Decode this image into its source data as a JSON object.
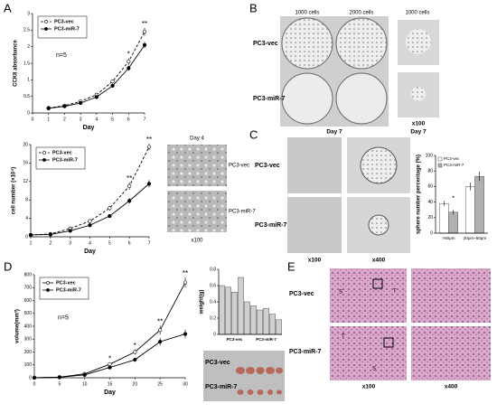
{
  "panels": {
    "A": {
      "label": "A",
      "image_title": "Day 4",
      "rows": [
        "PC3-vec",
        "PC3-miR-7"
      ],
      "magnification": "x100"
    },
    "B": {
      "label": "B",
      "columns": [
        "1000 cells",
        "2000 cells",
        "1000 cells"
      ],
      "rows": [
        "PC3-vec",
        "PC3-miR-7"
      ],
      "captions": [
        "Day 7",
        "x100",
        "Day 7"
      ]
    },
    "C": {
      "label": "C",
      "rows": [
        "PC3-vec",
        "PC3-miR-7"
      ],
      "captions": [
        "x100",
        "x400"
      ]
    },
    "D": {
      "label": "D",
      "rows": [
        "PC3-vec",
        "PC3-miR-7"
      ]
    },
    "E": {
      "label": "E",
      "rows": [
        "PC3-vec",
        "PC3-miR-7"
      ],
      "captions": [
        "x100",
        "x400"
      ],
      "tissue_marks": [
        "S",
        "T",
        "T",
        "S"
      ]
    }
  },
  "chart_data": [
    {
      "type": "line",
      "xlabel": "Day",
      "ylabel": "CCK8 absorbance",
      "x": [
        1,
        2,
        3,
        4,
        5,
        6,
        7
      ],
      "xlim": [
        0,
        7
      ],
      "xticks": [
        0,
        1,
        2,
        3,
        4,
        5,
        6,
        7
      ],
      "ylim": [
        0,
        3
      ],
      "yticks": [
        0,
        0.5,
        1,
        1.5,
        2,
        2.5,
        3
      ],
      "series": [
        {
          "name": "PC3-vec",
          "color": "#000000",
          "style": "dashed",
          "marker": "open",
          "values": [
            0.15,
            0.22,
            0.35,
            0.55,
            0.95,
            1.55,
            2.45
          ],
          "errors": [
            0.02,
            0.02,
            0.03,
            0.04,
            0.06,
            0.1,
            0.12
          ]
        },
        {
          "name": "PC3-miR-7",
          "color": "#000000",
          "style": "solid",
          "marker": "filled",
          "values": [
            0.14,
            0.2,
            0.3,
            0.48,
            0.82,
            1.35,
            2.05
          ],
          "errors": [
            0.02,
            0.02,
            0.03,
            0.04,
            0.05,
            0.08,
            0.1
          ]
        }
      ],
      "legend": "upper left",
      "note": "n=5",
      "annotations": [
        {
          "x": 6,
          "text": "*"
        },
        {
          "x": 7,
          "text": "**"
        }
      ]
    },
    {
      "type": "line",
      "xlabel": "Day",
      "ylabel": "cell number (×10⁴)",
      "x": [
        1,
        2,
        3,
        4,
        5,
        6,
        7
      ],
      "xlim": [
        1,
        7
      ],
      "xticks": [
        1,
        2,
        3,
        4,
        5,
        6,
        7
      ],
      "ylim": [
        0,
        20
      ],
      "yticks": [
        0,
        4,
        8,
        12,
        16,
        20
      ],
      "series": [
        {
          "name": "PC3-vec",
          "color": "#000000",
          "style": "dashed",
          "marker": "open",
          "values": [
            0.4,
            0.6,
            1.8,
            3.4,
            6.2,
            11,
            19.5
          ],
          "errors": [
            0.1,
            0.1,
            0.2,
            0.3,
            0.5,
            0.8,
            0.7
          ]
        },
        {
          "name": "PC3-miR-7",
          "color": "#000000",
          "style": "solid",
          "marker": "filled",
          "values": [
            0.4,
            0.5,
            1.3,
            2.5,
            4.5,
            7.8,
            11.5
          ],
          "errors": [
            0.1,
            0.1,
            0.2,
            0.3,
            0.4,
            0.6,
            0.8
          ]
        }
      ],
      "legend": "upper left",
      "annotations": [
        {
          "x": 6,
          "text": "**"
        },
        {
          "x": 7,
          "text": "**"
        }
      ]
    },
    {
      "type": "bar",
      "ylabel": "sphere number percentage (%)",
      "categories": [
        ">50μm",
        "20μm~50μm"
      ],
      "ylim": [
        0,
        100
      ],
      "yticks": [
        0,
        20,
        40,
        60,
        80,
        100
      ],
      "series": [
        {
          "name": "PC3-vec",
          "color": "#ffffff",
          "values": [
            38,
            60
          ],
          "errors": [
            3,
            5
          ]
        },
        {
          "name": "PC3-miR-7",
          "color": "#b0b0b0",
          "values": [
            27,
            73
          ],
          "errors": [
            3,
            6
          ]
        }
      ],
      "legend": "upper left",
      "annotations": [
        {
          "category": 0,
          "text": "*"
        }
      ]
    },
    {
      "type": "line",
      "xlabel": "Day",
      "ylabel": "volume(mm³)",
      "x": [
        0,
        5,
        10,
        15,
        20,
        25,
        30
      ],
      "xlim": [
        0,
        30
      ],
      "xticks": [
        0,
        5,
        10,
        15,
        20,
        25,
        30
      ],
      "ylim": [
        0,
        800
      ],
      "yticks": [
        0,
        100,
        200,
        300,
        400,
        500,
        600,
        700,
        800
      ],
      "series": [
        {
          "name": "PC3-vec",
          "color": "#000000",
          "style": "solid",
          "marker": "open",
          "values": [
            0,
            5,
            30,
            105,
            200,
            370,
            740
          ],
          "errors": [
            0,
            2,
            5,
            12,
            20,
            35,
            40
          ]
        },
        {
          "name": "PC3-miR-7",
          "color": "#000000",
          "style": "solid",
          "marker": "filled",
          "values": [
            0,
            4,
            22,
            80,
            140,
            280,
            340
          ],
          "errors": [
            0,
            2,
            4,
            10,
            15,
            30,
            35
          ]
        }
      ],
      "legend": "upper left",
      "note": "n=5",
      "annotations": [
        {
          "x": 15,
          "text": "*"
        },
        {
          "x": 20,
          "text": "*"
        },
        {
          "x": 25,
          "text": "**"
        },
        {
          "x": 30,
          "text": "**"
        }
      ]
    },
    {
      "type": "bar",
      "ylabel": "weight(g)",
      "categories": [
        null,
        null,
        null,
        null,
        null,
        null,
        null,
        null,
        null,
        null
      ],
      "group_labels": [
        "PC3-vec",
        "PC3-miR-7"
      ],
      "ylim": [
        0,
        0.8
      ],
      "yticks": [
        0,
        0.2,
        0.4,
        0.6,
        0.8
      ],
      "series": [
        {
          "color": "#d0d0d0",
          "values": [
            0.6,
            0.58,
            0.52,
            0.7,
            0.4,
            0.35,
            0.3,
            0.32,
            0.25,
            0.18
          ]
        }
      ]
    }
  ]
}
